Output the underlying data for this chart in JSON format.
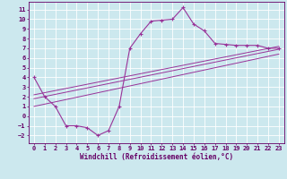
{
  "xlabel": "Windchill (Refroidissement éolien,°C)",
  "bg_color": "#cce8ee",
  "grid_color": "#ffffff",
  "line_color": "#993399",
  "axis_color": "#660066",
  "xlim": [
    -0.5,
    23.5
  ],
  "ylim": [
    -2.8,
    11.8
  ],
  "xticks": [
    0,
    1,
    2,
    3,
    4,
    5,
    6,
    7,
    8,
    9,
    10,
    11,
    12,
    13,
    14,
    15,
    16,
    17,
    18,
    19,
    20,
    21,
    22,
    23
  ],
  "yticks": [
    -2,
    -1,
    0,
    1,
    2,
    3,
    4,
    5,
    6,
    7,
    8,
    9,
    10,
    11
  ],
  "curve_x": [
    0,
    1,
    2,
    3,
    4,
    5,
    6,
    7,
    8,
    9,
    10,
    11,
    12,
    13,
    14,
    15,
    16,
    17,
    18,
    19,
    20,
    21,
    22,
    23
  ],
  "curve_y": [
    4.0,
    2.0,
    1.0,
    -1.0,
    -1.0,
    -1.2,
    -2.0,
    -1.5,
    1.0,
    7.0,
    8.5,
    9.8,
    9.9,
    10.0,
    11.2,
    9.5,
    8.8,
    7.5,
    7.4,
    7.3,
    7.3,
    7.3,
    7.0,
    7.0
  ],
  "line1_x": [
    0,
    23
  ],
  "line1_y": [
    2.2,
    7.2
  ],
  "line2_x": [
    0,
    23
  ],
  "line2_y": [
    1.8,
    6.9
  ],
  "line3_x": [
    0,
    23
  ],
  "line3_y": [
    1.0,
    6.4
  ],
  "tick_fontsize": 5.0,
  "xlabel_fontsize": 5.5
}
